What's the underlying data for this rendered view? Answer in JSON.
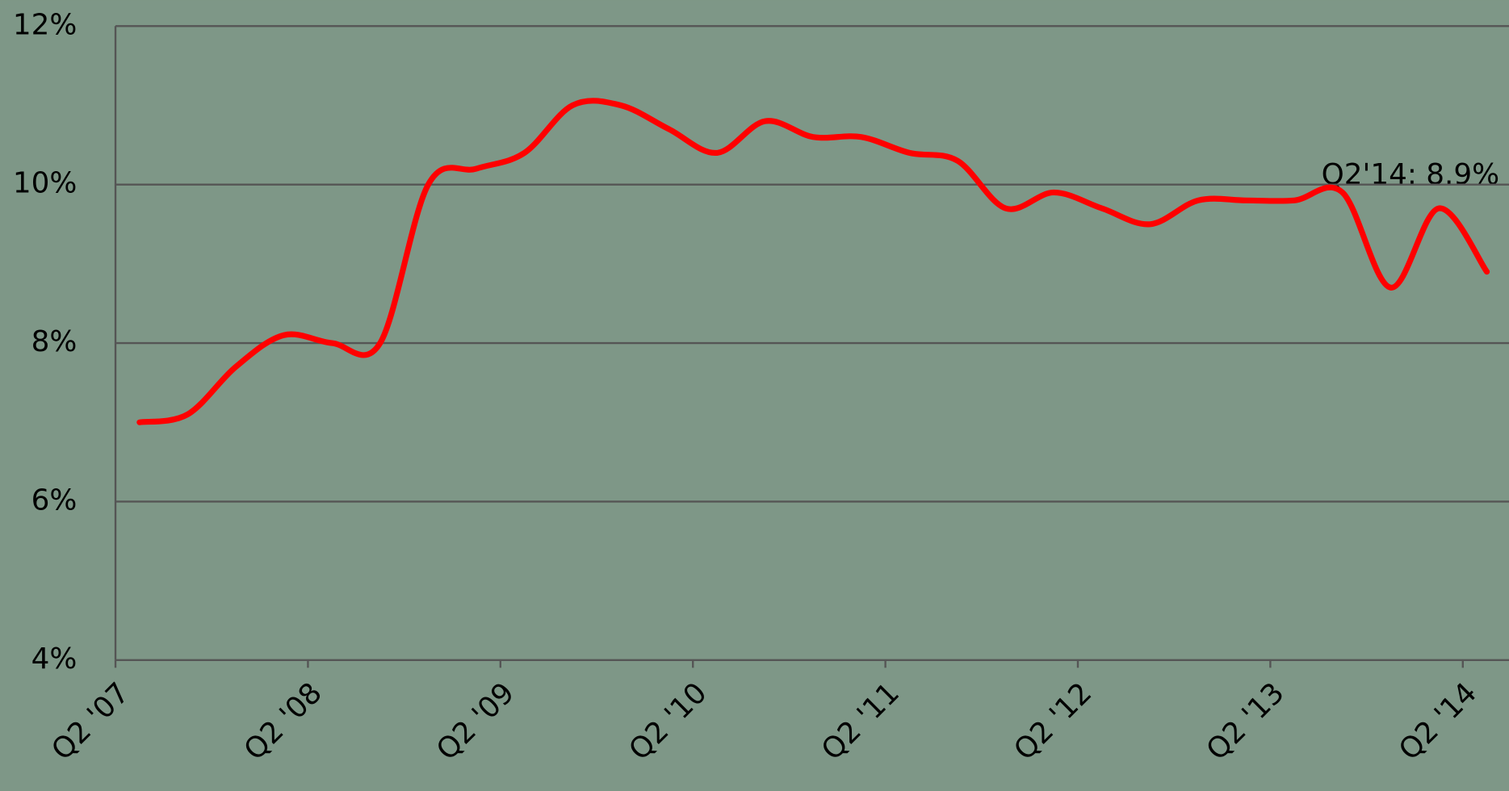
{
  "chart_data": {
    "type": "line",
    "categories": [
      "Q2 '07",
      null,
      null,
      null,
      "Q2 '08",
      null,
      null,
      null,
      "Q2 '09",
      null,
      null,
      null,
      "Q2 '10",
      null,
      null,
      null,
      "Q2 '11",
      null,
      null,
      null,
      "Q2 '12",
      null,
      null,
      null,
      "Q2 '13",
      null,
      null,
      null,
      "Q2 '14"
    ],
    "series": [
      {
        "color": "#ff0000",
        "values": [
          7.0,
          7.1,
          7.7,
          8.1,
          8.0,
          8.0,
          10.0,
          10.2,
          10.4,
          11.0,
          11.0,
          10.7,
          10.4,
          10.8,
          10.6,
          10.6,
          10.4,
          10.3,
          9.7,
          9.9,
          9.7,
          9.5,
          9.8,
          9.8,
          9.8,
          9.9,
          8.7,
          9.7,
          8.9
        ]
      }
    ],
    "ylim": [
      4,
      12
    ],
    "yticks": [
      {
        "value": 4,
        "label": "4%"
      },
      {
        "value": 6,
        "label": "6%"
      },
      {
        "value": 8,
        "label": "8%"
      },
      {
        "value": 10,
        "label": "10%"
      },
      {
        "value": 12,
        "label": "12%"
      }
    ],
    "grid": true,
    "annotation": "Q2'14: 8.9%"
  }
}
